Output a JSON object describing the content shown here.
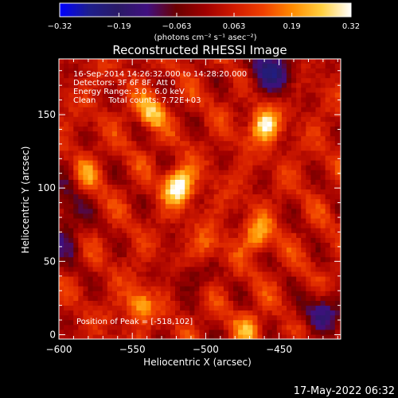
{
  "chart_data": {
    "type": "heatmap",
    "title": "Reconstructed RHESSI Image",
    "xlabel": "Heliocentric X (arcsec)",
    "ylabel": "Heliocentric Y (arcsec)",
    "xlim": [
      -600,
      -408
    ],
    "ylim": [
      -3,
      188
    ],
    "x_ticks": [
      -600,
      -550,
      -500,
      -450
    ],
    "x_tick_labels": [
      "−600",
      "−550",
      "−500",
      "−450"
    ],
    "y_ticks": [
      0,
      50,
      100,
      150
    ],
    "y_tick_labels": [
      "0",
      "50",
      "100",
      "150"
    ],
    "colorbar": {
      "range": [
        -0.32,
        0.32
      ],
      "ticks": [
        -0.32,
        -0.19,
        -0.063,
        0.063,
        0.19,
        0.32
      ],
      "tick_labels": [
        "−0.32",
        "−0.19",
        "−0.063",
        "0.063",
        "0.19",
        "0.32"
      ],
      "units": "(photons cm⁻² s⁻¹ asec⁻²)",
      "colors": [
        "#0000ff",
        "#1e1e8c",
        "#2a1a66",
        "#401080",
        "#6a0000",
        "#a00000",
        "#d11a00",
        "#f04000",
        "#ff8c00",
        "#ffd040",
        "#ffffff"
      ]
    },
    "annotations": [
      "16-Sep-2014 14:26:32.000 to 14:28:20.000",
      "Detectors: 3F 6F 8F, Att 0",
      "Energy Range: 3.0 - 6.0 keV",
      "Clean     Total counts: 7.72E+03"
    ],
    "peak_label": "Position of Peak = [-518,102]",
    "peak": {
      "x": -518,
      "y": 102
    },
    "sources": [
      {
        "x": -518,
        "y": 102,
        "intensity": 0.32
      },
      {
        "x": -460,
        "y": 143,
        "intensity": 0.26
      },
      {
        "x": -538,
        "y": 152,
        "intensity": 0.2
      },
      {
        "x": -465,
        "y": 68,
        "intensity": 0.18
      },
      {
        "x": -545,
        "y": 20,
        "intensity": 0.17
      },
      {
        "x": -470,
        "y": 5,
        "intensity": 0.14
      },
      {
        "x": -582,
        "y": 110,
        "intensity": 0.12
      },
      {
        "x": -500,
        "y": 60,
        "intensity": 0.1
      }
    ]
  },
  "footer": {
    "date": "17-May-2022 06:32"
  }
}
